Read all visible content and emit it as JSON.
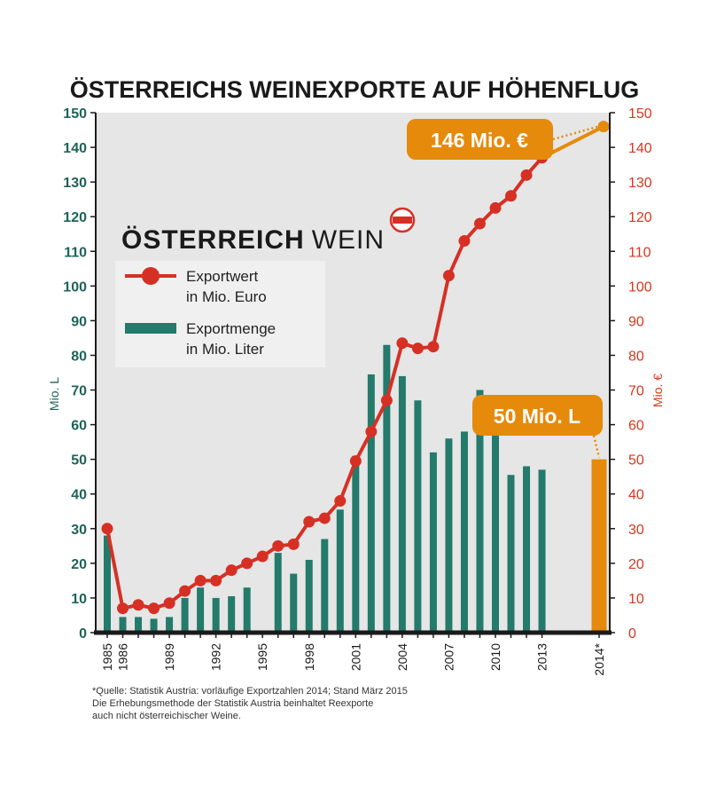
{
  "title": "ÖSTERREICHS WEINEXPORTE AUF HÖHENFLUG",
  "logo": {
    "text_bold": "ÖSTERREICH",
    "text_light": "WEIN"
  },
  "colors": {
    "bar": "#247a6b",
    "line": "#d63025",
    "highlight": "#e58a0a",
    "plot_bg": "#e6e6e6",
    "left_axis": "#1d6457",
    "right_axis": "#d9361e"
  },
  "chart_data": {
    "type": "bar+line",
    "title": "ÖSTERREICHS WEINEXPORTE AUF HÖHENFLUG",
    "ylabel_left": "Mio. L",
    "ylabel_right": "Mio. €",
    "ylim": [
      0,
      150
    ],
    "y_ticks": [
      0,
      10,
      20,
      30,
      40,
      50,
      60,
      70,
      80,
      90,
      100,
      110,
      120,
      130,
      140,
      150
    ],
    "x": [
      1985,
      1986,
      1987,
      1988,
      1989,
      1990,
      1991,
      1992,
      1993,
      1994,
      1995,
      1996,
      1997,
      1998,
      1999,
      2000,
      2001,
      2002,
      2003,
      2004,
      2005,
      2006,
      2007,
      2008,
      2009,
      2010,
      2011,
      2012,
      2013,
      2014
    ],
    "x_tick_labels": [
      {
        "year": 1985,
        "label": "1985"
      },
      {
        "year": 1986,
        "label": "1986"
      },
      {
        "year": 1989,
        "label": "1989"
      },
      {
        "year": 1992,
        "label": "1992"
      },
      {
        "year": 1995,
        "label": "1995"
      },
      {
        "year": 1998,
        "label": "1998"
      },
      {
        "year": 2001,
        "label": "2001"
      },
      {
        "year": 2004,
        "label": "2004"
      },
      {
        "year": 2007,
        "label": "2007"
      },
      {
        "year": 2010,
        "label": "2010"
      },
      {
        "year": 2013,
        "label": "2013"
      },
      {
        "year": 2014,
        "label": "2014*"
      }
    ],
    "series": [
      {
        "name": "Exportmenge in Mio. Liter",
        "type": "bar",
        "axis": "left",
        "values": [
          28,
          4.5,
          4.5,
          4,
          4.5,
          10,
          13,
          10,
          10.5,
          13,
          null,
          23,
          17,
          21,
          27,
          35.5,
          51,
          74.5,
          83,
          74,
          67,
          52,
          56,
          58,
          70,
          58,
          45.5,
          48,
          47,
          50
        ]
      },
      {
        "name": "Exportwert in Mio. Euro",
        "type": "line",
        "axis": "right",
        "values": [
          30,
          7,
          8,
          7,
          8.5,
          12,
          15,
          15,
          18,
          20,
          22,
          25,
          25.5,
          32,
          33,
          38,
          49.5,
          58,
          67,
          83.5,
          82,
          82.5,
          103,
          113,
          118,
          122.5,
          126,
          132,
          137,
          146
        ]
      }
    ],
    "legend": [
      {
        "label_line1": "Exportwert",
        "label_line2": "in Mio. Euro"
      },
      {
        "label_line1": "Exportmenge",
        "label_line2": "in Mio. Liter"
      }
    ],
    "callouts": [
      {
        "text": "146 Mio. €",
        "series": "Exportwert in Mio. Euro",
        "year": 2014,
        "value": 146
      },
      {
        "text": "50 Mio. L",
        "series": "Exportmenge in Mio. Liter",
        "year": 2014,
        "value": 50
      }
    ],
    "legend_position": "upper-left",
    "grid": false
  },
  "footnote": [
    "*Quelle: Statistik Austria: vorläufige Exportzahlen 2014; Stand März 2015",
    "Die Erhebungsmethode der Statistik Austria beinhaltet Reexporte",
    "auch nicht österreichischer Weine."
  ]
}
